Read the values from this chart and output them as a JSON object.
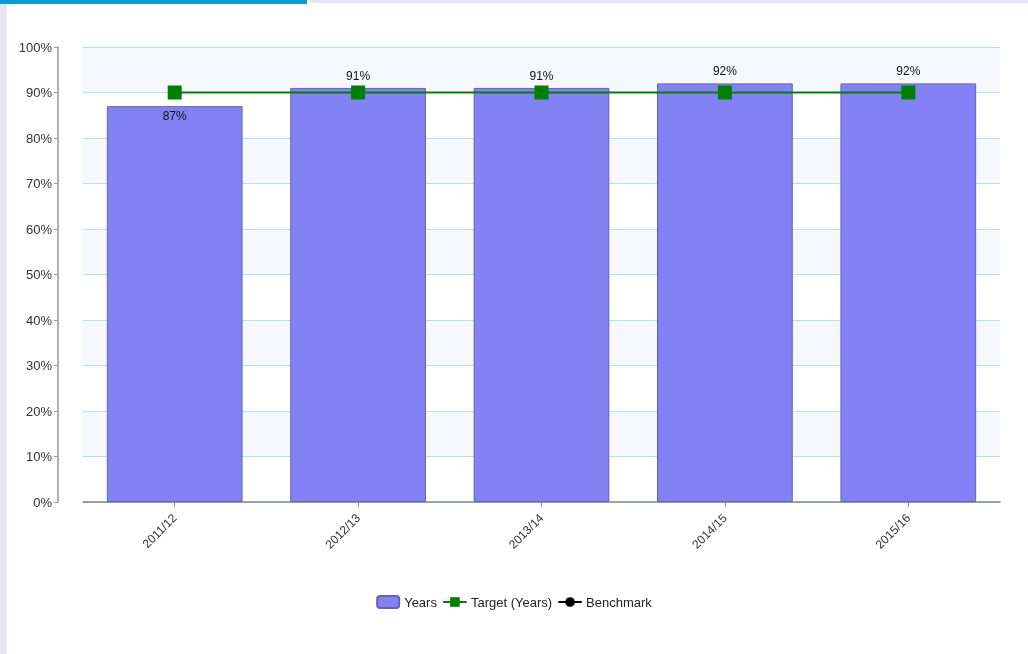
{
  "chart_data": {
    "type": "bar",
    "categories": [
      "2011/12",
      "2012/13",
      "2013/14",
      "2014/15",
      "2015/16"
    ],
    "series": [
      {
        "name": "Years",
        "color": "#8282f4",
        "values": [
          87,
          91,
          91,
          92,
          92
        ],
        "value_labels": [
          "87%",
          "91%",
          "91%",
          "92%",
          "92%"
        ]
      },
      {
        "name": "Target (Years)",
        "type": "line",
        "color": "#008000",
        "values": [
          90,
          90,
          90,
          90,
          90
        ],
        "marker": "square"
      },
      {
        "name": "Benchmark",
        "type": "line",
        "color": "#000000",
        "values": [
          null,
          null,
          null,
          null,
          null
        ],
        "marker": "circle"
      }
    ],
    "ylim": [
      0,
      100
    ],
    "yticks": [
      {
        "value": 0,
        "label": "0%"
      },
      {
        "value": 10,
        "label": "10%"
      },
      {
        "value": 20,
        "label": "20%"
      },
      {
        "value": 30,
        "label": "30%"
      },
      {
        "value": 40,
        "label": "40%"
      },
      {
        "value": 50,
        "label": "50%"
      },
      {
        "value": 60,
        "label": "60%"
      },
      {
        "value": 70,
        "label": "70%"
      },
      {
        "value": 80,
        "label": "80%"
      },
      {
        "value": 90,
        "label": "90%"
      },
      {
        "value": 100,
        "label": "100%"
      }
    ],
    "grid": "y",
    "legend": "bottom"
  }
}
